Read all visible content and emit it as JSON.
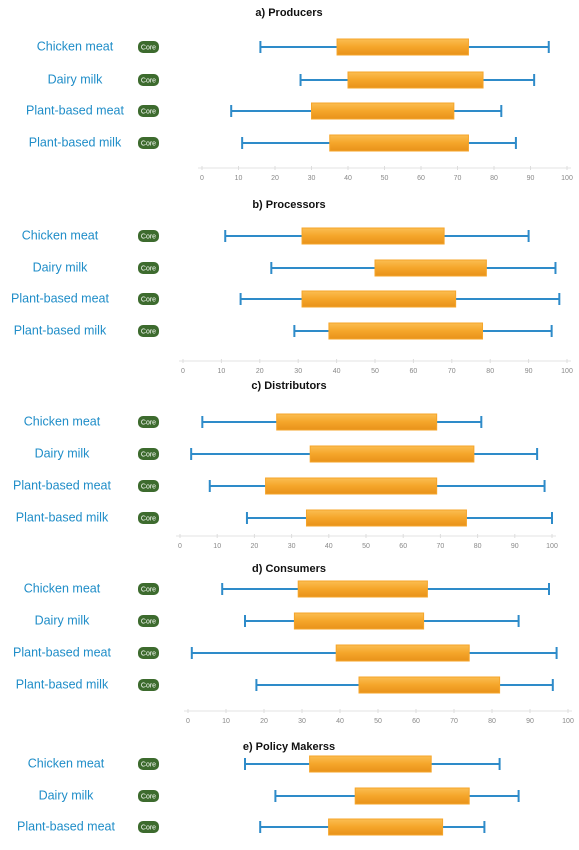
{
  "chart_data": [
    {
      "type": "range-box",
      "title": "a) Producers",
      "categories": [
        "Chicken meat",
        "Dairy milk",
        "Plant-based meat",
        "Plant-based milk"
      ],
      "badges": [
        "Core",
        "Core",
        "Core",
        "Core"
      ],
      "min": [
        16,
        27,
        8,
        11
      ],
      "q1": [
        37,
        40,
        30,
        35
      ],
      "q3": [
        73,
        77,
        69,
        73
      ],
      "max": [
        95,
        91,
        82,
        86
      ],
      "xlim": [
        0,
        100
      ],
      "xticks": [
        0,
        10,
        20,
        30,
        40,
        50,
        60,
        70,
        80,
        90,
        100
      ],
      "box_color": "#f5a52a",
      "whisker_color": "#2e8bc9"
    },
    {
      "type": "range-box",
      "title": "b) Processors",
      "categories": [
        "Chicken meat",
        "Dairy milk",
        "Plant-based meat",
        "Plant-based milk"
      ],
      "badges": [
        "Core",
        "Core",
        "Core",
        "Core"
      ],
      "min": [
        11,
        23,
        15,
        29
      ],
      "q1": [
        31,
        50,
        31,
        38
      ],
      "q3": [
        68,
        79,
        71,
        78
      ],
      "max": [
        90,
        97,
        98,
        96
      ],
      "xlim": [
        0,
        100
      ],
      "xticks": [
        0,
        10,
        20,
        30,
        40,
        50,
        60,
        70,
        80,
        90,
        100
      ],
      "box_color": "#f5a52a",
      "whisker_color": "#2e8bc9"
    },
    {
      "type": "range-box",
      "title": "c) Distributors",
      "categories": [
        "Chicken meat",
        "Dairy milk",
        "Plant-based meat",
        "Plant-based milk"
      ],
      "badges": [
        "Core",
        "Core",
        "Core",
        "Core"
      ],
      "min": [
        6,
        3,
        8,
        18
      ],
      "q1": [
        26,
        35,
        23,
        34
      ],
      "q3": [
        69,
        79,
        69,
        77
      ],
      "max": [
        81,
        96,
        98,
        100
      ],
      "xlim": [
        0,
        100
      ],
      "xticks": [
        0,
        10,
        20,
        30,
        40,
        50,
        60,
        70,
        80,
        90,
        100
      ],
      "box_color": "#f5a52a",
      "whisker_color": "#2e8bc9"
    },
    {
      "type": "range-box",
      "title": "d) Consumers",
      "categories": [
        "Chicken meat",
        "Dairy milk",
        "Plant-based meat",
        "Plant-based milk"
      ],
      "badges": [
        "Core",
        "Core",
        "Core",
        "Core"
      ],
      "min": [
        9,
        15,
        1,
        18
      ],
      "q1": [
        29,
        28,
        39,
        45
      ],
      "q3": [
        63,
        62,
        74,
        82
      ],
      "max": [
        95,
        87,
        97,
        96
      ],
      "xlim": [
        0,
        100
      ],
      "xticks": [
        0,
        10,
        20,
        30,
        40,
        50,
        60,
        70,
        80,
        90,
        100
      ],
      "box_color": "#f5a52a",
      "whisker_color": "#2e8bc9"
    },
    {
      "type": "range-box",
      "title": "e) Policy Makerss",
      "categories": [
        "Chicken meat",
        "Dairy milk",
        "Plant-based meat"
      ],
      "badges": [
        "Core",
        "Core",
        "Core"
      ],
      "min": [
        15,
        23,
        19
      ],
      "q1": [
        32,
        44,
        37
      ],
      "q3": [
        64,
        74,
        67
      ],
      "max": [
        82,
        87,
        78
      ],
      "xlim": [
        0,
        100
      ],
      "box_color": "#f5a52a",
      "whisker_color": "#2e8bc9"
    }
  ]
}
